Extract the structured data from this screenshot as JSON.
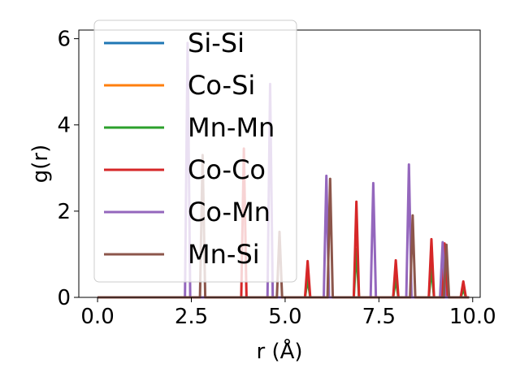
{
  "chart_data": {
    "type": "line",
    "xlabel": "r (Å)",
    "ylabel": "g(r)",
    "xlim": [
      -0.5,
      10.2
    ],
    "ylim": [
      0,
      6.2
    ],
    "xticks": [
      0.0,
      2.5,
      5.0,
      7.5,
      10.0
    ],
    "xtick_labels": [
      "0.0",
      "2.5",
      "5.0",
      "7.5",
      "10.0"
    ],
    "yticks": [
      0,
      2,
      4,
      6
    ],
    "ytick_labels": [
      "0",
      "2",
      "4",
      "6"
    ],
    "grid": false,
    "legend_position": "upper-left",
    "series": [
      {
        "name": "Si-Si",
        "color": "#1f77b4",
        "peaks": []
      },
      {
        "name": "Co-Si",
        "color": "#ff7f0e",
        "peaks": []
      },
      {
        "name": "Mn-Mn",
        "color": "#2ca02c",
        "peaks": [
          [
            5.6,
            0.42
          ],
          [
            6.9,
            1.12
          ],
          [
            7.95,
            0.42
          ],
          [
            8.9,
            0.68
          ],
          [
            9.25,
            0.62
          ],
          [
            9.75,
            0.18
          ]
        ]
      },
      {
        "name": "Co-Co",
        "color": "#d62728",
        "peaks": [
          [
            3.9,
            3.45
          ],
          [
            5.6,
            0.84
          ],
          [
            6.9,
            2.22
          ],
          [
            7.95,
            0.86
          ],
          [
            8.9,
            1.35
          ],
          [
            9.25,
            1.25
          ],
          [
            9.75,
            0.37
          ]
        ]
      },
      {
        "name": "Co-Mn",
        "color": "#9467bd",
        "peaks": [
          [
            2.4,
            5.9
          ],
          [
            4.6,
            4.95
          ],
          [
            6.1,
            2.82
          ],
          [
            7.35,
            2.65
          ],
          [
            8.3,
            3.08
          ],
          [
            9.2,
            1.28
          ]
        ]
      },
      {
        "name": "Mn-Si",
        "color": "#8c564b",
        "peaks": [
          [
            2.8,
            3.3
          ],
          [
            4.85,
            1.52
          ],
          [
            6.2,
            2.75
          ],
          [
            8.4,
            1.9
          ],
          [
            9.3,
            1.22
          ]
        ]
      }
    ]
  }
}
